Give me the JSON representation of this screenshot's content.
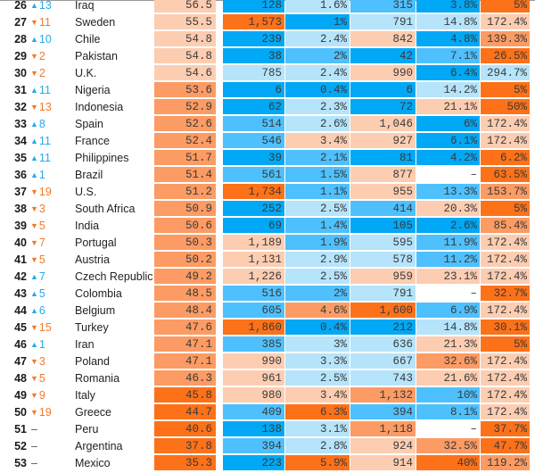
{
  "columns": [
    "rank",
    "change",
    "country",
    "score",
    "metric_1",
    "metric_2",
    "metric_3",
    "metric_4",
    "metric_5"
  ],
  "colors": {
    "b3": "#00a8f5",
    "b2": "#4ec0fd",
    "b1": "#b5e4fb",
    "o1": "#fdcdb1",
    "o2": "#fc9b63",
    "o3": "#fd7119",
    "w": "#ffffff",
    "up_arrow": "#27a9e8",
    "down_arrow": "#f2792b"
  },
  "rows": [
    {
      "rank": "26",
      "dir": "up",
      "change": "13",
      "country": "Iraq",
      "score": "56.5",
      "score_c": "o1",
      "values": [
        "128",
        "1.6%",
        "315",
        "3.8%",
        "5%"
      ],
      "shades": [
        "b3",
        "b1",
        "b2",
        "b3",
        "o3"
      ]
    },
    {
      "rank": "27",
      "dir": "down",
      "change": "11",
      "country": "Sweden",
      "score": "55.5",
      "score_c": "o1",
      "values": [
        "1,573",
        "1%",
        "791",
        "14.8%",
        "172.4%"
      ],
      "shades": [
        "o3",
        "b3",
        "b1",
        "b1",
        "o1"
      ]
    },
    {
      "rank": "28",
      "dir": "up",
      "change": "10",
      "country": "Chile",
      "score": "54.8",
      "score_c": "o1",
      "values": [
        "239",
        "2.4%",
        "842",
        "4.8%",
        "139.3%"
      ],
      "shades": [
        "b3",
        "b1",
        "o1",
        "b3",
        "o2"
      ]
    },
    {
      "rank": "29",
      "dir": "down",
      "change": "2",
      "country": "Pakistan",
      "score": "54.8",
      "score_c": "o1",
      "values": [
        "38",
        "2%",
        "42",
        "7.1%",
        "26.5%"
      ],
      "shades": [
        "b3",
        "b2",
        "b3",
        "b2",
        "o3"
      ]
    },
    {
      "rank": "30",
      "dir": "down",
      "change": "2",
      "country": "U.K.",
      "score": "54.6",
      "score_c": "o1",
      "values": [
        "785",
        "2.4%",
        "990",
        "6.4%",
        "294.7%"
      ],
      "shades": [
        "b1",
        "b1",
        "o1",
        "b3",
        "b1"
      ]
    },
    {
      "rank": "31",
      "dir": "up",
      "change": "11",
      "country": "Nigeria",
      "score": "53.6",
      "score_c": "o2",
      "values": [
        "6",
        "0.4%",
        "6",
        "14.2%",
        "5%"
      ],
      "shades": [
        "b3",
        "b3",
        "b3",
        "b1",
        "o3"
      ]
    },
    {
      "rank": "32",
      "dir": "down",
      "change": "13",
      "country": "Indonesia",
      "score": "52.9",
      "score_c": "o2",
      "values": [
        "62",
        "2.3%",
        "72",
        "21.1%",
        "50%"
      ],
      "shades": [
        "b3",
        "b1",
        "b3",
        "o1",
        "o3"
      ]
    },
    {
      "rank": "33",
      "dir": "up",
      "change": "8",
      "country": "Spain",
      "score": "52.6",
      "score_c": "o2",
      "values": [
        "514",
        "2.6%",
        "1,046",
        "6%",
        "172.4%"
      ],
      "shades": [
        "b2",
        "b1",
        "o1",
        "b3",
        "o1"
      ]
    },
    {
      "rank": "34",
      "dir": "up",
      "change": "11",
      "country": "France",
      "score": "52.4",
      "score_c": "o2",
      "values": [
        "546",
        "3.4%",
        "927",
        "6.1%",
        "172.4%"
      ],
      "shades": [
        "b2",
        "o1",
        "o1",
        "b3",
        "o1"
      ]
    },
    {
      "rank": "35",
      "dir": "up",
      "change": "11",
      "country": "Philippines",
      "score": "51.7",
      "score_c": "o2",
      "values": [
        "39",
        "2.1%",
        "81",
        "4.2%",
        "6.2%"
      ],
      "shades": [
        "b3",
        "b2",
        "b3",
        "b3",
        "o3"
      ]
    },
    {
      "rank": "36",
      "dir": "up",
      "change": "1",
      "country": "Brazil",
      "score": "51.4",
      "score_c": "o2",
      "values": [
        "561",
        "1.5%",
        "877",
        "–",
        "63.5%"
      ],
      "shades": [
        "b2",
        "b2",
        "o1",
        "w",
        "o3"
      ]
    },
    {
      "rank": "37",
      "dir": "down",
      "change": "19",
      "country": "U.S.",
      "score": "51.2",
      "score_c": "o2",
      "values": [
        "1,734",
        "1.1%",
        "955",
        "13.3%",
        "153.7%"
      ],
      "shades": [
        "o3",
        "b2",
        "o1",
        "b2",
        "o2"
      ]
    },
    {
      "rank": "38",
      "dir": "down",
      "change": "3",
      "country": "South Africa",
      "score": "50.9",
      "score_c": "o2",
      "values": [
        "252",
        "2.5%",
        "414",
        "20.3%",
        "5%"
      ],
      "shades": [
        "b3",
        "b1",
        "b2",
        "o1",
        "o3"
      ]
    },
    {
      "rank": "39",
      "dir": "down",
      "change": "5",
      "country": "India",
      "score": "50.6",
      "score_c": "o2",
      "values": [
        "69",
        "1.4%",
        "105",
        "2.6%",
        "85.4%"
      ],
      "shades": [
        "b3",
        "b2",
        "b3",
        "b3",
        "o2"
      ]
    },
    {
      "rank": "40",
      "dir": "down",
      "change": "7",
      "country": "Portugal",
      "score": "50.3",
      "score_c": "o2",
      "values": [
        "1,189",
        "1.9%",
        "595",
        "11.9%",
        "172.4%"
      ],
      "shades": [
        "o1",
        "b2",
        "b1",
        "b2",
        "o1"
      ]
    },
    {
      "rank": "41",
      "dir": "down",
      "change": "5",
      "country": "Austria",
      "score": "50.2",
      "score_c": "o2",
      "values": [
        "1,131",
        "2.9%",
        "578",
        "11.2%",
        "172.4%"
      ],
      "shades": [
        "o1",
        "b1",
        "b1",
        "b2",
        "o1"
      ]
    },
    {
      "rank": "42",
      "dir": "up",
      "change": "7",
      "country": "Czech Republic",
      "score": "49.2",
      "score_c": "o2",
      "values": [
        "1,226",
        "2.5%",
        "959",
        "23.1%",
        "172.4%"
      ],
      "shades": [
        "o1",
        "b1",
        "o1",
        "o1",
        "o1"
      ]
    },
    {
      "rank": "43",
      "dir": "up",
      "change": "5",
      "country": "Colombia",
      "score": "48.5",
      "score_c": "o2",
      "values": [
        "516",
        "2%",
        "791",
        "–",
        "32.7%"
      ],
      "shades": [
        "b2",
        "b2",
        "b1",
        "w",
        "o3"
      ]
    },
    {
      "rank": "44",
      "dir": "up",
      "change": "6",
      "country": "Belgium",
      "score": "48.4",
      "score_c": "o2",
      "values": [
        "605",
        "4.6%",
        "1,600",
        "6.9%",
        "172.4%"
      ],
      "shades": [
        "b2",
        "o2",
        "o3",
        "b2",
        "o1"
      ]
    },
    {
      "rank": "45",
      "dir": "down",
      "change": "15",
      "country": "Turkey",
      "score": "47.6",
      "score_c": "o2",
      "values": [
        "1,860",
        "0.4%",
        "212",
        "14.8%",
        "30.1%"
      ],
      "shades": [
        "o3",
        "b3",
        "b3",
        "b1",
        "o3"
      ]
    },
    {
      "rank": "46",
      "dir": "up",
      "change": "1",
      "country": "Iran",
      "score": "47.1",
      "score_c": "o2",
      "values": [
        "385",
        "3%",
        "636",
        "21.3%",
        "5%"
      ],
      "shades": [
        "b2",
        "b1",
        "b1",
        "o1",
        "o3"
      ]
    },
    {
      "rank": "47",
      "dir": "down",
      "change": "3",
      "country": "Poland",
      "score": "47.1",
      "score_c": "o2",
      "values": [
        "990",
        "3.3%",
        "667",
        "32.6%",
        "172.4%"
      ],
      "shades": [
        "o1",
        "b1",
        "b1",
        "o2",
        "o1"
      ]
    },
    {
      "rank": "48",
      "dir": "down",
      "change": "5",
      "country": "Romania",
      "score": "46.3",
      "score_c": "o2",
      "values": [
        "961",
        "2.5%",
        "743",
        "21.6%",
        "172.4%"
      ],
      "shades": [
        "o1",
        "b1",
        "b1",
        "o1",
        "o1"
      ]
    },
    {
      "rank": "49",
      "dir": "down",
      "change": "9",
      "country": "Italy",
      "score": "45.8",
      "score_c": "o3",
      "values": [
        "980",
        "3.4%",
        "1,132",
        "10%",
        "172.4%"
      ],
      "shades": [
        "o1",
        "o1",
        "o2",
        "b2",
        "o1"
      ]
    },
    {
      "rank": "50",
      "dir": "down",
      "change": "19",
      "country": "Greece",
      "score": "44.7",
      "score_c": "o3",
      "values": [
        "409",
        "6.3%",
        "394",
        "8.1%",
        "172.4%"
      ],
      "shades": [
        "b2",
        "o3",
        "b2",
        "b2",
        "o1"
      ]
    },
    {
      "rank": "51",
      "dir": "none",
      "change": "–",
      "country": "Peru",
      "score": "40.6",
      "score_c": "o3",
      "values": [
        "138",
        "3.1%",
        "1,118",
        "–",
        "37.7%"
      ],
      "shades": [
        "b3",
        "b1",
        "o2",
        "w",
        "o3"
      ]
    },
    {
      "rank": "52",
      "dir": "none",
      "change": "–",
      "country": "Argentina",
      "score": "37.8",
      "score_c": "o3",
      "values": [
        "394",
        "2.8%",
        "924",
        "32.5%",
        "47.7%"
      ],
      "shades": [
        "b2",
        "b1",
        "o1",
        "o2",
        "o3"
      ]
    },
    {
      "rank": "53",
      "dir": "none",
      "change": "–",
      "country": "Mexico",
      "score": "35.3",
      "score_c": "o3",
      "values": [
        "223",
        "5.9%",
        "914",
        "40%",
        "119.2%"
      ],
      "shades": [
        "b3",
        "o3",
        "o1",
        "o3",
        "o2"
      ]
    }
  ],
  "icons": {
    "up": "▲",
    "down": "▼",
    "none": ""
  }
}
